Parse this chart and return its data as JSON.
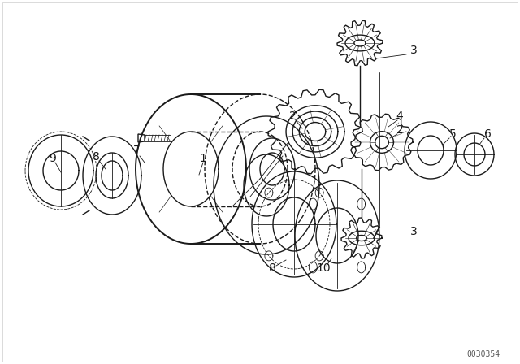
{
  "bg_color": "#ffffff",
  "line_color": "#1a1a1a",
  "fig_width": 6.4,
  "fig_height": 4.48,
  "dpi": 100,
  "watermark": "0030354",
  "border_color": "#cccccc"
}
